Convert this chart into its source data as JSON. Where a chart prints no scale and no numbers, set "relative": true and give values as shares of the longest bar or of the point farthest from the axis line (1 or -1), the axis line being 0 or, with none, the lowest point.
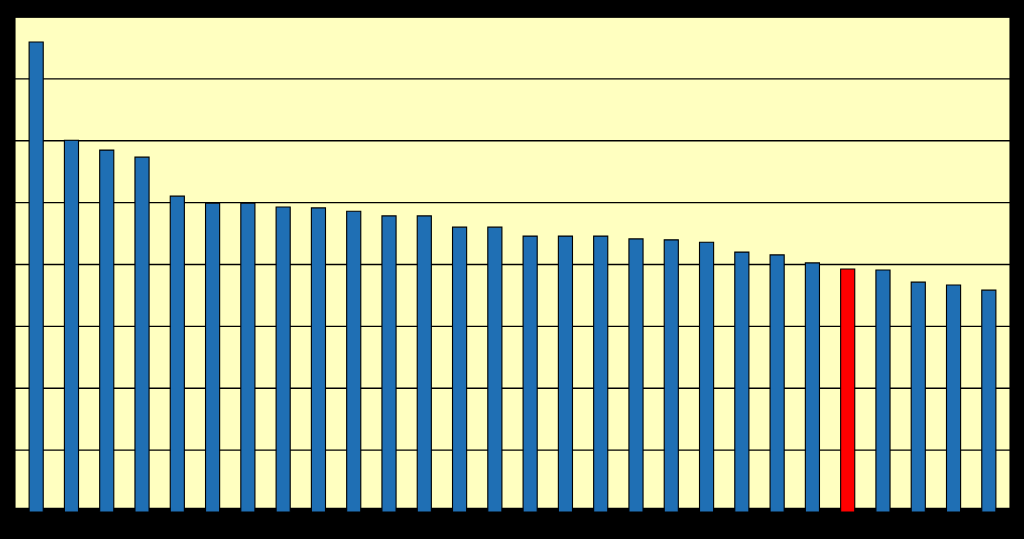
{
  "chart_data": {
    "type": "bar",
    "relative": true,
    "grid": "y",
    "categories": [
      null,
      null,
      null,
      null,
      null,
      null,
      null,
      null,
      null,
      null,
      null,
      null,
      null,
      null,
      null,
      null,
      null,
      null,
      null,
      null,
      null,
      null,
      null,
      null,
      null,
      null,
      null,
      null
    ],
    "values": [
      1.0,
      0.791,
      0.77,
      0.755,
      0.672,
      0.657,
      0.657,
      0.649,
      0.647,
      0.64,
      0.63,
      0.63,
      0.606,
      0.606,
      0.587,
      0.587,
      0.587,
      0.581,
      0.579,
      0.574,
      0.553,
      0.547,
      0.53,
      0.517,
      0.515,
      0.489,
      0.483,
      0.472
    ],
    "colors": [
      "#1f6fb4",
      "#1f6fb4",
      "#1f6fb4",
      "#1f6fb4",
      "#1f6fb4",
      "#1f6fb4",
      "#1f6fb4",
      "#1f6fb4",
      "#1f6fb4",
      "#1f6fb4",
      "#1f6fb4",
      "#1f6fb4",
      "#1f6fb4",
      "#1f6fb4",
      "#1f6fb4",
      "#1f6fb4",
      "#1f6fb4",
      "#1f6fb4",
      "#1f6fb4",
      "#1f6fb4",
      "#1f6fb4",
      "#1f6fb4",
      "#1f6fb4",
      "#ff0000",
      "#1f6fb4",
      "#1f6fb4",
      "#1f6fb4",
      "#1f6fb4"
    ]
  }
}
